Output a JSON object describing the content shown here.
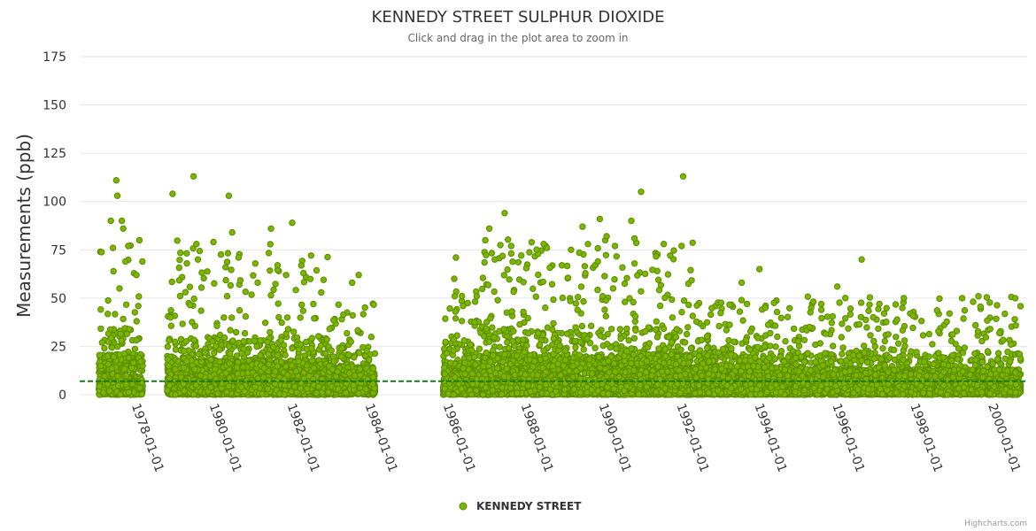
{
  "chart_data": {
    "type": "scatter",
    "title": "KENNEDY STREET SULPHUR DIOXIDE",
    "subtitle": "Click and drag in the plot area to zoom in",
    "ylabel": "Measurements (ppb)",
    "xlabel": "",
    "ylim": [
      0,
      175
    ],
    "yticks": [
      0,
      25,
      50,
      75,
      100,
      125,
      150,
      175
    ],
    "xlim": [
      "1976-09-01",
      "2000-12-31"
    ],
    "xticks": [
      "1978-01-01",
      "1980-01-01",
      "1982-01-01",
      "1984-01-01",
      "1986-01-01",
      "1988-01-01",
      "1990-01-01",
      "1992-01-01",
      "1994-01-01",
      "1996-01-01",
      "1998-01-01",
      "2000-01-01"
    ],
    "grid": true,
    "legend_position": "bottom-center",
    "reference_line": {
      "y": 7,
      "color": "#1a7a1a",
      "style": "dashed"
    },
    "series": [
      {
        "name": "KENNEDY STREET",
        "color": "#7cb500",
        "stroke": "#5a8c00",
        "highlighted_points": [
          [
            "1977-08-10",
            111
          ],
          [
            "1977-08-20",
            103
          ],
          [
            "1977-06-20",
            90
          ],
          [
            "1977-10-01",
            90
          ],
          [
            "1977-10-15",
            86
          ],
          [
            "1977-12-01",
            77
          ],
          [
            "1978-03-15",
            80
          ],
          [
            "1977-07-10",
            76
          ],
          [
            "1978-02-15",
            62
          ],
          [
            "1977-09-10",
            55
          ],
          [
            "1979-01-20",
            104
          ],
          [
            "1979-08-05",
            113
          ],
          [
            "1980-07-01",
            103
          ],
          [
            "1980-08-01",
            84
          ],
          [
            "1981-08-01",
            86
          ],
          [
            "1982-02-15",
            89
          ],
          [
            "1979-09-01",
            78
          ],
          [
            "1979-09-15",
            70
          ],
          [
            "1980-10-01",
            71
          ],
          [
            "1981-10-01",
            67
          ],
          [
            "1980-06-01",
            66
          ],
          [
            "1982-06-01",
            63
          ],
          [
            "1983-11-01",
            62
          ],
          [
            "1983-09-01",
            58
          ],
          [
            "1986-05-01",
            71
          ],
          [
            "1986-04-15",
            60
          ],
          [
            "1987-02-01",
            80
          ],
          [
            "1987-03-10",
            86
          ],
          [
            "1987-08-01",
            94
          ],
          [
            "1987-05-01",
            70
          ],
          [
            "1987-10-01",
            77
          ],
          [
            "1988-08-01",
            78
          ],
          [
            "1988-09-01",
            76
          ],
          [
            "1989-04-15",
            75
          ],
          [
            "1989-08-01",
            87
          ],
          [
            "1990-01-10",
            91
          ],
          [
            "1990-03-01",
            80
          ],
          [
            "1990-03-15",
            82
          ],
          [
            "1990-06-01",
            77
          ],
          [
            "1990-11-01",
            90
          ],
          [
            "1991-02-01",
            105
          ],
          [
            "1991-09-01",
            78
          ],
          [
            "1991-11-01",
            72
          ],
          [
            "1992-03-01",
            113
          ],
          [
            "1993-09-01",
            58
          ],
          [
            "1994-02-15",
            65
          ],
          [
            "1996-10-01",
            70
          ],
          [
            "1996-02-15",
            56
          ],
          [
            "1997-11-01",
            50
          ],
          [
            "1999-05-01",
            50
          ],
          [
            "1999-10-01",
            51
          ],
          [
            "2000-01-20",
            34
          ],
          [
            "2000-04-15",
            32
          ],
          [
            "2000-08-01",
            26
          ],
          [
            "1995-06-01",
            35
          ],
          [
            "1994-08-01",
            30
          ]
        ],
        "periods": [
          {
            "start": "1977-03-01",
            "end": "1978-04-15",
            "typical_max": 35,
            "peak": 111
          },
          {
            "start": "1978-12-01",
            "end": "1983-01-15",
            "typical_max": 30,
            "peak": 113
          },
          {
            "start": "1983-01-15",
            "end": "1984-04-01",
            "typical_max": 25,
            "peak": 62
          },
          {
            "start": "1986-01-01",
            "end": "1987-01-01",
            "typical_max": 28,
            "peak": 71
          },
          {
            "start": "1987-01-01",
            "end": "1992-06-01",
            "typical_max": 35,
            "peak": 113
          },
          {
            "start": "1992-06-01",
            "end": "1995-01-01",
            "typical_max": 25,
            "peak": 65
          },
          {
            "start": "1995-01-01",
            "end": "2000-11-01",
            "typical_max": 22,
            "peak": 70
          }
        ]
      }
    ]
  },
  "credits": "Highcharts.com"
}
